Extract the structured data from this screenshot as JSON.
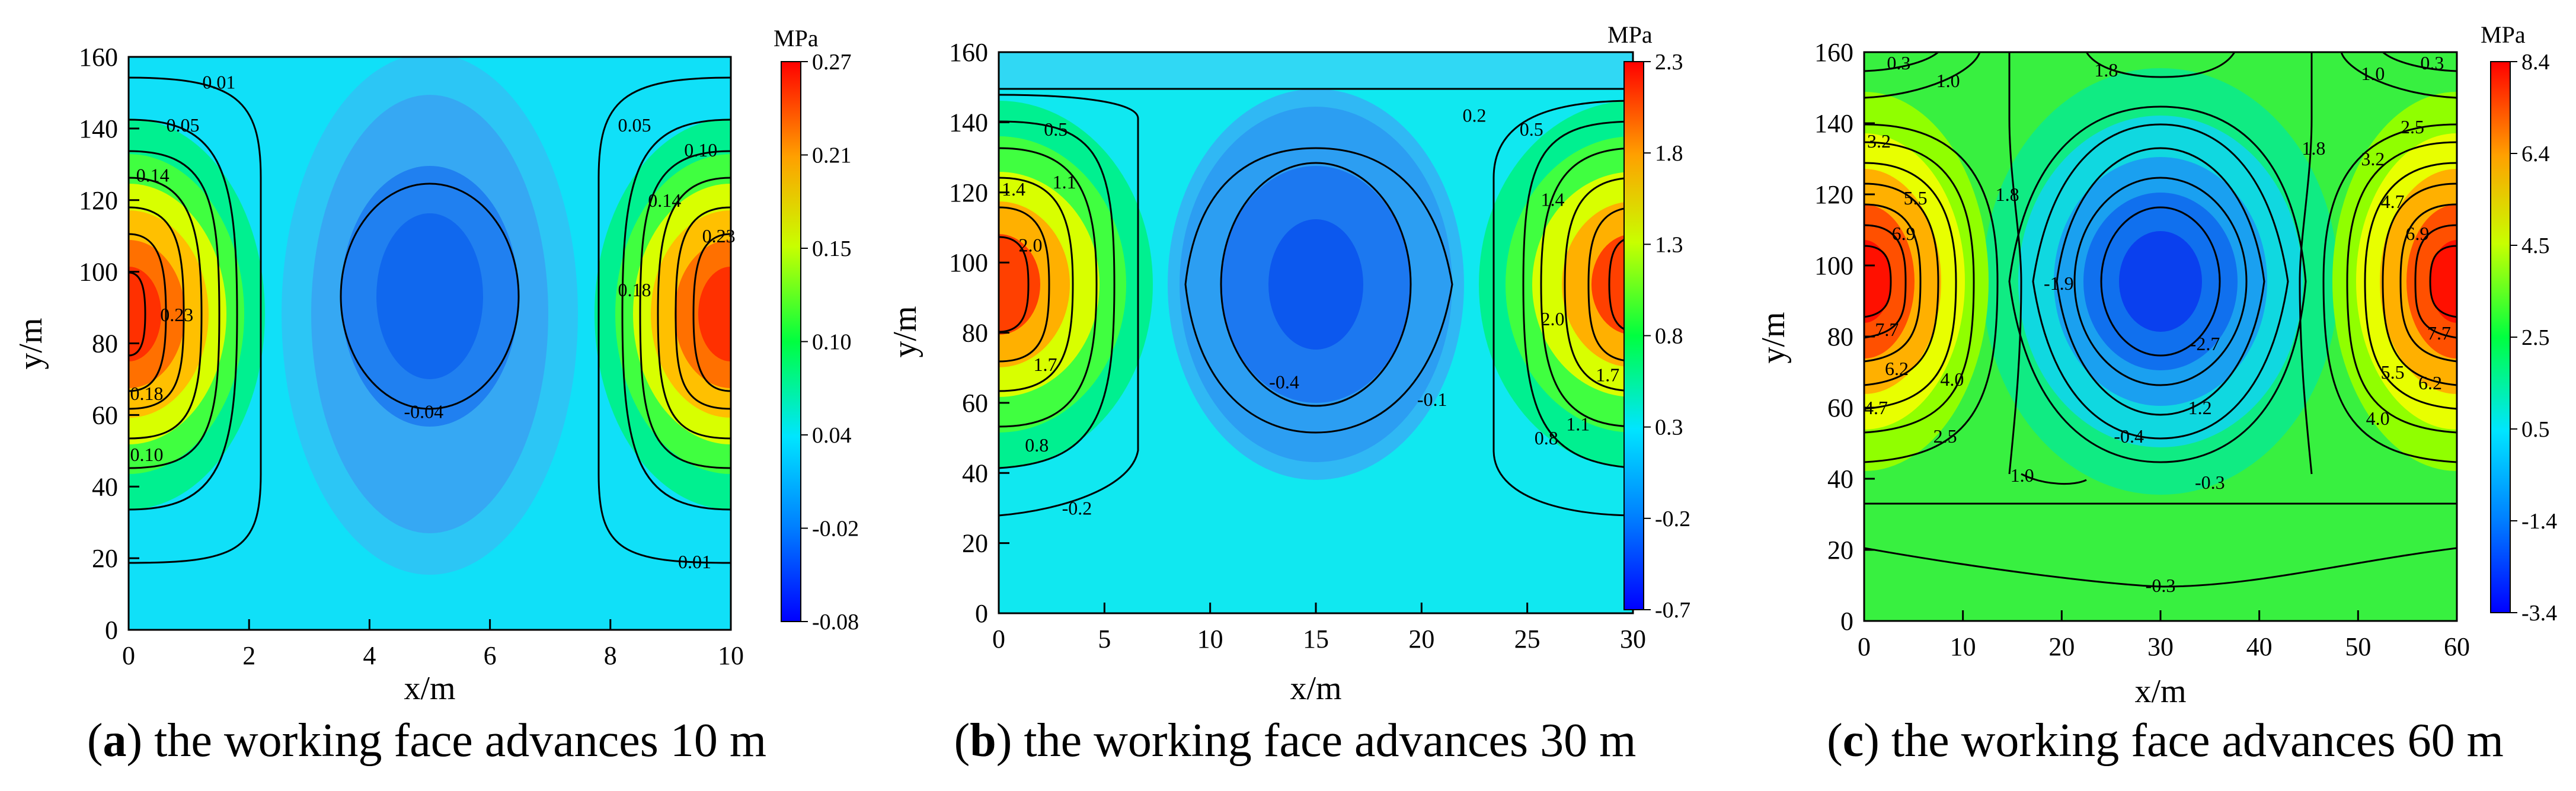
{
  "chart_data": [
    {
      "type": "heatmap",
      "panel_letter": "a",
      "caption": "the working face advances 10 m",
      "xlabel": "x/m",
      "ylabel": "y/m",
      "unit_label": "MPa",
      "xlim": [
        0,
        10
      ],
      "ylim": [
        0,
        160
      ],
      "xticks": [
        "0",
        "2",
        "4",
        "6",
        "8",
        "10"
      ],
      "yticks": [
        "0",
        "20",
        "40",
        "60",
        "80",
        "100",
        "120",
        "140",
        "160"
      ],
      "colorbar_ticks": [
        "-0.08",
        "-0.02",
        "0.04",
        "0.10",
        "0.15",
        "0.21",
        "0.27"
      ],
      "colorbar_range": [
        -0.08,
        0.27
      ],
      "contour_labels": [
        {
          "text": "0.01",
          "x": 1.5,
          "y": 153
        },
        {
          "text": "0.05",
          "x": 0.9,
          "y": 141
        },
        {
          "text": "0.14",
          "x": 0.4,
          "y": 127
        },
        {
          "text": "0.23",
          "x": 0.8,
          "y": 88
        },
        {
          "text": "0.18",
          "x": 0.3,
          "y": 66
        },
        {
          "text": "0.10",
          "x": 0.3,
          "y": 49
        },
        {
          "text": "-0.04",
          "x": 4.9,
          "y": 61
        },
        {
          "text": "0.05",
          "x": 8.4,
          "y": 141
        },
        {
          "text": "0.10",
          "x": 9.5,
          "y": 134
        },
        {
          "text": "0.14",
          "x": 8.9,
          "y": 120
        },
        {
          "text": "0.23",
          "x": 9.8,
          "y": 110
        },
        {
          "text": "0.18",
          "x": 8.4,
          "y": 95
        },
        {
          "text": "0.01",
          "x": 9.4,
          "y": 19
        }
      ]
    },
    {
      "type": "heatmap",
      "panel_letter": "b",
      "caption": "the working face advances 30 m",
      "xlabel": "x/m",
      "ylabel": "y/m",
      "unit_label": "MPa",
      "xlim": [
        0,
        30
      ],
      "ylim": [
        0,
        160
      ],
      "xticks": [
        "0",
        "5",
        "10",
        "15",
        "20",
        "25",
        "30"
      ],
      "yticks": [
        "0",
        "20",
        "40",
        "60",
        "80",
        "100",
        "120",
        "140",
        "160"
      ],
      "colorbar_ticks": [
        "-0.7",
        "-0.2",
        "0.3",
        "0.8",
        "1.3",
        "1.8",
        "2.3"
      ],
      "colorbar_range": [
        -0.7,
        2.3
      ],
      "contour_labels": [
        {
          "text": "0.5",
          "x": 2.7,
          "y": 138
        },
        {
          "text": "1.4",
          "x": 0.7,
          "y": 121
        },
        {
          "text": "1.1",
          "x": 3.1,
          "y": 123
        },
        {
          "text": "2.0",
          "x": 1.5,
          "y": 105
        },
        {
          "text": "1.7",
          "x": 2.2,
          "y": 71
        },
        {
          "text": "0.8",
          "x": 1.8,
          "y": 48
        },
        {
          "text": "-0.2",
          "x": 3.7,
          "y": 30
        },
        {
          "text": "-0.4",
          "x": 13.5,
          "y": 66
        },
        {
          "text": "-0.1",
          "x": 20.5,
          "y": 61
        },
        {
          "text": "0.2",
          "x": 22.5,
          "y": 142
        },
        {
          "text": "0.5",
          "x": 25.2,
          "y": 138
        },
        {
          "text": "1.4",
          "x": 26.2,
          "y": 118
        },
        {
          "text": "2.0",
          "x": 26.2,
          "y": 84
        },
        {
          "text": "1.7",
          "x": 28.8,
          "y": 68
        },
        {
          "text": "1.1",
          "x": 27.4,
          "y": 54
        },
        {
          "text": "0.8",
          "x": 25.9,
          "y": 50
        }
      ]
    },
    {
      "type": "heatmap",
      "panel_letter": "c",
      "caption": "the working face advances 60 m",
      "xlabel": "x/m",
      "ylabel": "y/m",
      "unit_label": "MPa",
      "xlim": [
        0,
        60
      ],
      "ylim": [
        0,
        160
      ],
      "xticks": [
        "0",
        "10",
        "20",
        "30",
        "40",
        "50",
        "60"
      ],
      "yticks": [
        "0",
        "20",
        "40",
        "60",
        "80",
        "100",
        "120",
        "140",
        "160"
      ],
      "colorbar_ticks": [
        "-3.4",
        "-1.4",
        "0.5",
        "2.5",
        "4.5",
        "6.4",
        "8.4"
      ],
      "colorbar_range": [
        -3.4,
        8.4
      ],
      "contour_labels": [
        {
          "text": "0.3",
          "x": 3.5,
          "y": 157
        },
        {
          "text": "1.0",
          "x": 8.5,
          "y": 152
        },
        {
          "text": "1.8",
          "x": 24.5,
          "y": 155
        },
        {
          "text": "1.0",
          "x": 51.5,
          "y": 154
        },
        {
          "text": "0.3",
          "x": 57.5,
          "y": 157
        },
        {
          "text": "2.5",
          "x": 55.5,
          "y": 139
        },
        {
          "text": "3.2",
          "x": 1.5,
          "y": 135
        },
        {
          "text": "1.8",
          "x": 45.5,
          "y": 133
        },
        {
          "text": "3.2",
          "x": 51.5,
          "y": 130
        },
        {
          "text": "1.8",
          "x": 14.5,
          "y": 120
        },
        {
          "text": "5.5",
          "x": 5.2,
          "y": 119
        },
        {
          "text": "4.7",
          "x": 53.5,
          "y": 118
        },
        {
          "text": "6.9",
          "x": 4.0,
          "y": 109
        },
        {
          "text": "6.9",
          "x": 56.0,
          "y": 109
        },
        {
          "text": "-1.9",
          "x": 19.7,
          "y": 95
        },
        {
          "text": "7.7",
          "x": 2.3,
          "y": 82
        },
        {
          "text": "-2.7",
          "x": 34.5,
          "y": 78
        },
        {
          "text": "7.7",
          "x": 58.2,
          "y": 81
        },
        {
          "text": "6.2",
          "x": 3.3,
          "y": 71
        },
        {
          "text": "4.0",
          "x": 8.9,
          "y": 68
        },
        {
          "text": "5.5",
          "x": 53.5,
          "y": 70
        },
        {
          "text": "6.2",
          "x": 57.3,
          "y": 67
        },
        {
          "text": "1.2",
          "x": 34.0,
          "y": 60
        },
        {
          "text": "4.7",
          "x": 1.2,
          "y": 60
        },
        {
          "text": "4.0",
          "x": 52.0,
          "y": 57
        },
        {
          "text": "-0.4",
          "x": 26.8,
          "y": 52
        },
        {
          "text": "2.5",
          "x": 8.2,
          "y": 52
        },
        {
          "text": "1.0",
          "x": 16.0,
          "y": 41
        },
        {
          "text": "-0.3",
          "x": 35.0,
          "y": 39
        },
        {
          "text": "-0.3",
          "x": 30.0,
          "y": 10
        }
      ]
    }
  ]
}
